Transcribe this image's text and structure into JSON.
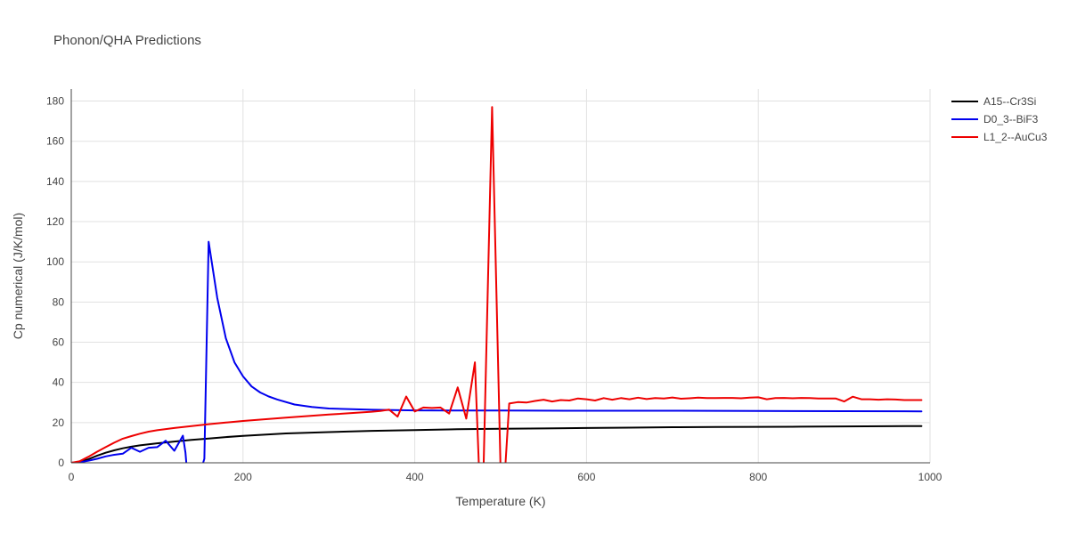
{
  "chart_data": {
    "type": "line",
    "title": "Phonon/QHA Predictions",
    "xlabel": "Temperature (K)",
    "ylabel": "Cp numerical (J/K/mol)",
    "xlim": [
      0,
      1000
    ],
    "ylim": [
      0,
      186
    ],
    "xticks": [
      0,
      200,
      400,
      600,
      800,
      1000
    ],
    "yticks": [
      0,
      20,
      40,
      60,
      80,
      100,
      120,
      140,
      160,
      180
    ],
    "grid": true,
    "legend_position": "top-right",
    "series": [
      {
        "name": "A15--Cr3Si",
        "color": "#000000",
        "x": [
          0,
          10,
          20,
          30,
          40,
          50,
          60,
          70,
          80,
          90,
          100,
          120,
          140,
          160,
          180,
          200,
          250,
          300,
          350,
          400,
          450,
          500,
          550,
          600,
          650,
          700,
          750,
          800,
          850,
          900,
          950,
          990
        ],
        "y": [
          0,
          0.5,
          1.8,
          3.5,
          5.0,
          6.2,
          7.2,
          8.0,
          8.7,
          9.2,
          9.7,
          10.6,
          11.4,
          12.1,
          12.8,
          13.4,
          14.6,
          15.3,
          15.9,
          16.3,
          16.7,
          16.9,
          17.1,
          17.3,
          17.5,
          17.7,
          17.8,
          17.9,
          18.0,
          18.1,
          18.2,
          18.3
        ]
      },
      {
        "name": "D0_3--BiF3",
        "color": "#0000ee",
        "x": [
          0,
          10,
          20,
          30,
          40,
          50,
          60,
          70,
          80,
          90,
          100,
          110,
          120,
          130,
          133,
          135,
          150,
          155,
          160,
          170,
          180,
          190,
          200,
          210,
          220,
          230,
          240,
          260,
          280,
          300,
          350,
          400,
          500,
          600,
          700,
          800,
          900,
          990
        ],
        "y": [
          0,
          0.3,
          1.0,
          2.0,
          3.2,
          4.0,
          4.5,
          7.5,
          5.5,
          7.5,
          7.8,
          11,
          6.0,
          13.5,
          5,
          -5,
          -5,
          2,
          110,
          82,
          62,
          50,
          43,
          38,
          35,
          33,
          31.5,
          29,
          27.8,
          27,
          26.4,
          26.1,
          26.0,
          25.9,
          25.9,
          25.8,
          25.7,
          25.6
        ]
      },
      {
        "name": "L1_2--AuCu3",
        "color": "#ee0000",
        "x": [
          0,
          10,
          20,
          30,
          40,
          50,
          60,
          70,
          80,
          90,
          100,
          120,
          140,
          160,
          180,
          200,
          250,
          300,
          350,
          360,
          370,
          380,
          390,
          400,
          410,
          420,
          430,
          440,
          450,
          460,
          470,
          475,
          480,
          490,
          500,
          505,
          510,
          520,
          530,
          540,
          550,
          560,
          570,
          580,
          590,
          600,
          610,
          620,
          630,
          640,
          650,
          660,
          670,
          680,
          690,
          700,
          710,
          720,
          730,
          740,
          750,
          760,
          770,
          780,
          790,
          800,
          810,
          820,
          830,
          840,
          850,
          860,
          870,
          880,
          890,
          900,
          910,
          920,
          930,
          940,
          950,
          960,
          970,
          980,
          990
        ],
        "y": [
          0,
          0.8,
          3.0,
          5.5,
          7.8,
          10,
          12,
          13.3,
          14.5,
          15.5,
          16.2,
          17.3,
          18.3,
          19.2,
          20.0,
          20.8,
          22.5,
          24.0,
          25.4,
          25.8,
          26.5,
          23.0,
          33.0,
          25.5,
          27.5,
          27.3,
          27.5,
          24.5,
          37.5,
          22.0,
          50.0,
          -5,
          -5,
          177,
          -5,
          -5,
          29.5,
          30.2,
          30.0,
          30.8,
          31.4,
          30.5,
          31.2,
          31.0,
          32.0,
          31.6,
          31.0,
          32.2,
          31.4,
          32.2,
          31.6,
          32.4,
          31.7,
          32.2,
          32.0,
          32.5,
          31.9,
          32.1,
          32.4,
          32.2,
          32.2,
          32.3,
          32.3,
          32.1,
          32.4,
          32.6,
          31.6,
          32.2,
          32.3,
          32.1,
          32.3,
          32.2,
          32.0,
          32.0,
          32.0,
          30.5,
          32.9,
          31.6,
          31.6,
          31.4,
          31.6,
          31.5,
          31.2,
          31.2,
          31.2
        ]
      }
    ]
  }
}
